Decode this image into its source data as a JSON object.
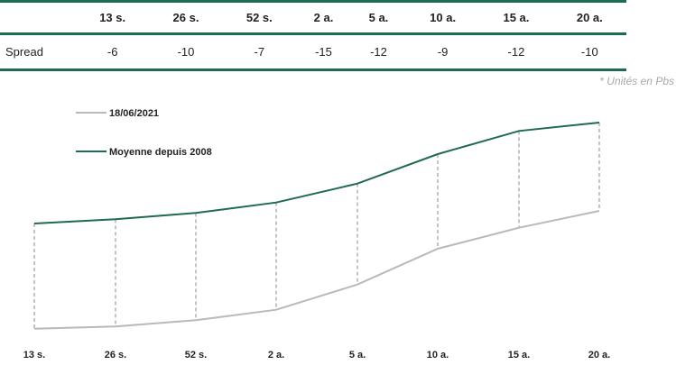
{
  "table": {
    "columns": [
      "13 s.",
      "26 s.",
      "52 s.",
      "2 a.",
      "5 a.",
      "10 a.",
      "15 a.",
      "20 a."
    ],
    "row_label": "Spread",
    "values": [
      "-6",
      "-10",
      "-7",
      "-15",
      "-12",
      "-9",
      "-12",
      "-10"
    ]
  },
  "note": "* Unités en Pbs",
  "colors": {
    "accent": "#1f6b4f",
    "current": "#b9b9b9",
    "average": "#1f6b4f",
    "dash": "#8a8a8a"
  },
  "chart_data": {
    "type": "line",
    "categories": [
      "13 s.",
      "26 s.",
      "52 s.",
      "2 a.",
      "5 a.",
      "10 a.",
      "15 a.",
      "20 a."
    ],
    "series": [
      {
        "name": "18/06/2021",
        "values": [
          -0.65,
          -0.64,
          -0.61,
          -0.56,
          -0.44,
          -0.27,
          -0.17,
          -0.09
        ],
        "color": "#b9b9b9"
      },
      {
        "name": "Moyenne depuis 2008",
        "values": [
          -0.15,
          -0.13,
          -0.1,
          -0.05,
          0.04,
          0.18,
          0.29,
          0.33
        ],
        "color": "#1f6b4f"
      }
    ],
    "ylim": [
      -0.75,
      0.45
    ],
    "grid": false,
    "legend": "top-left",
    "connectors": "dashed-vertical"
  }
}
